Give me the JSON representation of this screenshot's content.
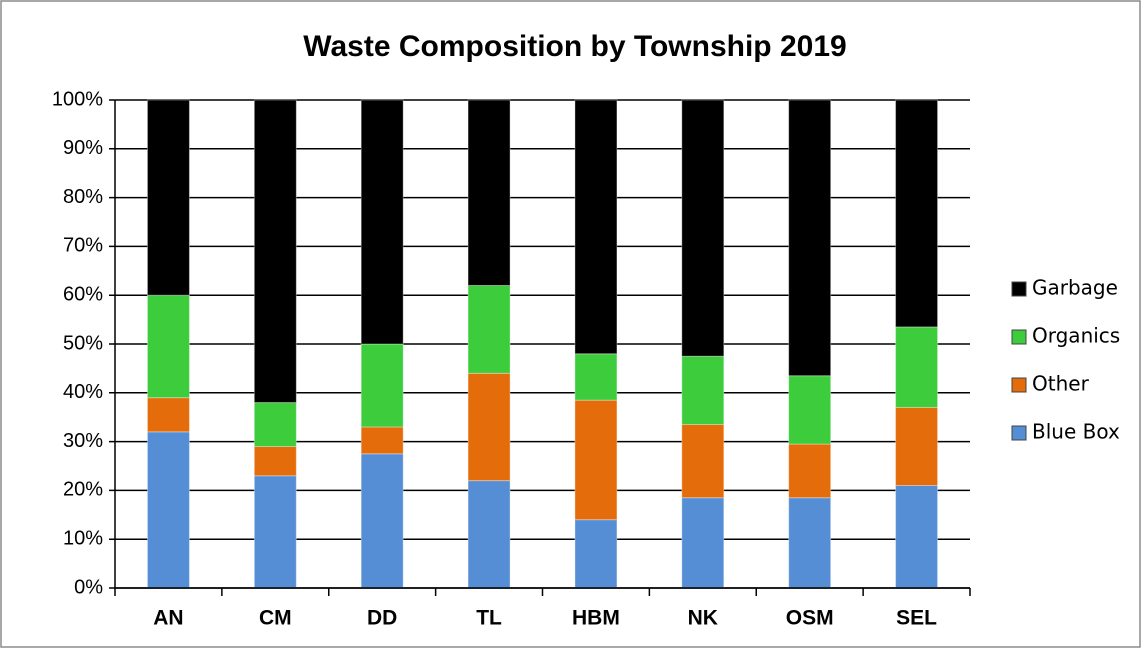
{
  "chart_data": {
    "type": "stacked_bar",
    "title": "Waste Composition by Township 2019",
    "categories": [
      "AN",
      "CM",
      "DD",
      "TL",
      "HBM",
      "NK",
      "OSM",
      "SEL"
    ],
    "series": [
      {
        "name": "Blue Box",
        "color": "#558ed5",
        "values": [
          32,
          23,
          27.5,
          22,
          14,
          18.5,
          18.5,
          21
        ]
      },
      {
        "name": "Other",
        "color": "#e46c0a",
        "values": [
          7,
          6,
          5.5,
          22,
          24.5,
          15,
          11,
          16
        ]
      },
      {
        "name": "Organics",
        "color": "#3ccc3c",
        "values": [
          21,
          9,
          17,
          18,
          9.5,
          14,
          14,
          16.5
        ]
      },
      {
        "name": "Garbage",
        "color": "#000000",
        "values": [
          40,
          62,
          50,
          38,
          52,
          52.5,
          56.5,
          46.5
        ]
      }
    ],
    "ylim": [
      0,
      100
    ],
    "yticks": [
      {
        "value": 0,
        "label": "0%"
      },
      {
        "value": 10,
        "label": "10%"
      },
      {
        "value": 20,
        "label": "20%"
      },
      {
        "value": 30,
        "label": "30%"
      },
      {
        "value": 40,
        "label": "40%"
      },
      {
        "value": 50,
        "label": "50%"
      },
      {
        "value": 60,
        "label": "60%"
      },
      {
        "value": 70,
        "label": "70%"
      },
      {
        "value": 80,
        "label": "80%"
      },
      {
        "value": 90,
        "label": "90%"
      },
      {
        "value": 100,
        "label": "100%"
      }
    ],
    "grid": true,
    "legend": "right"
  }
}
